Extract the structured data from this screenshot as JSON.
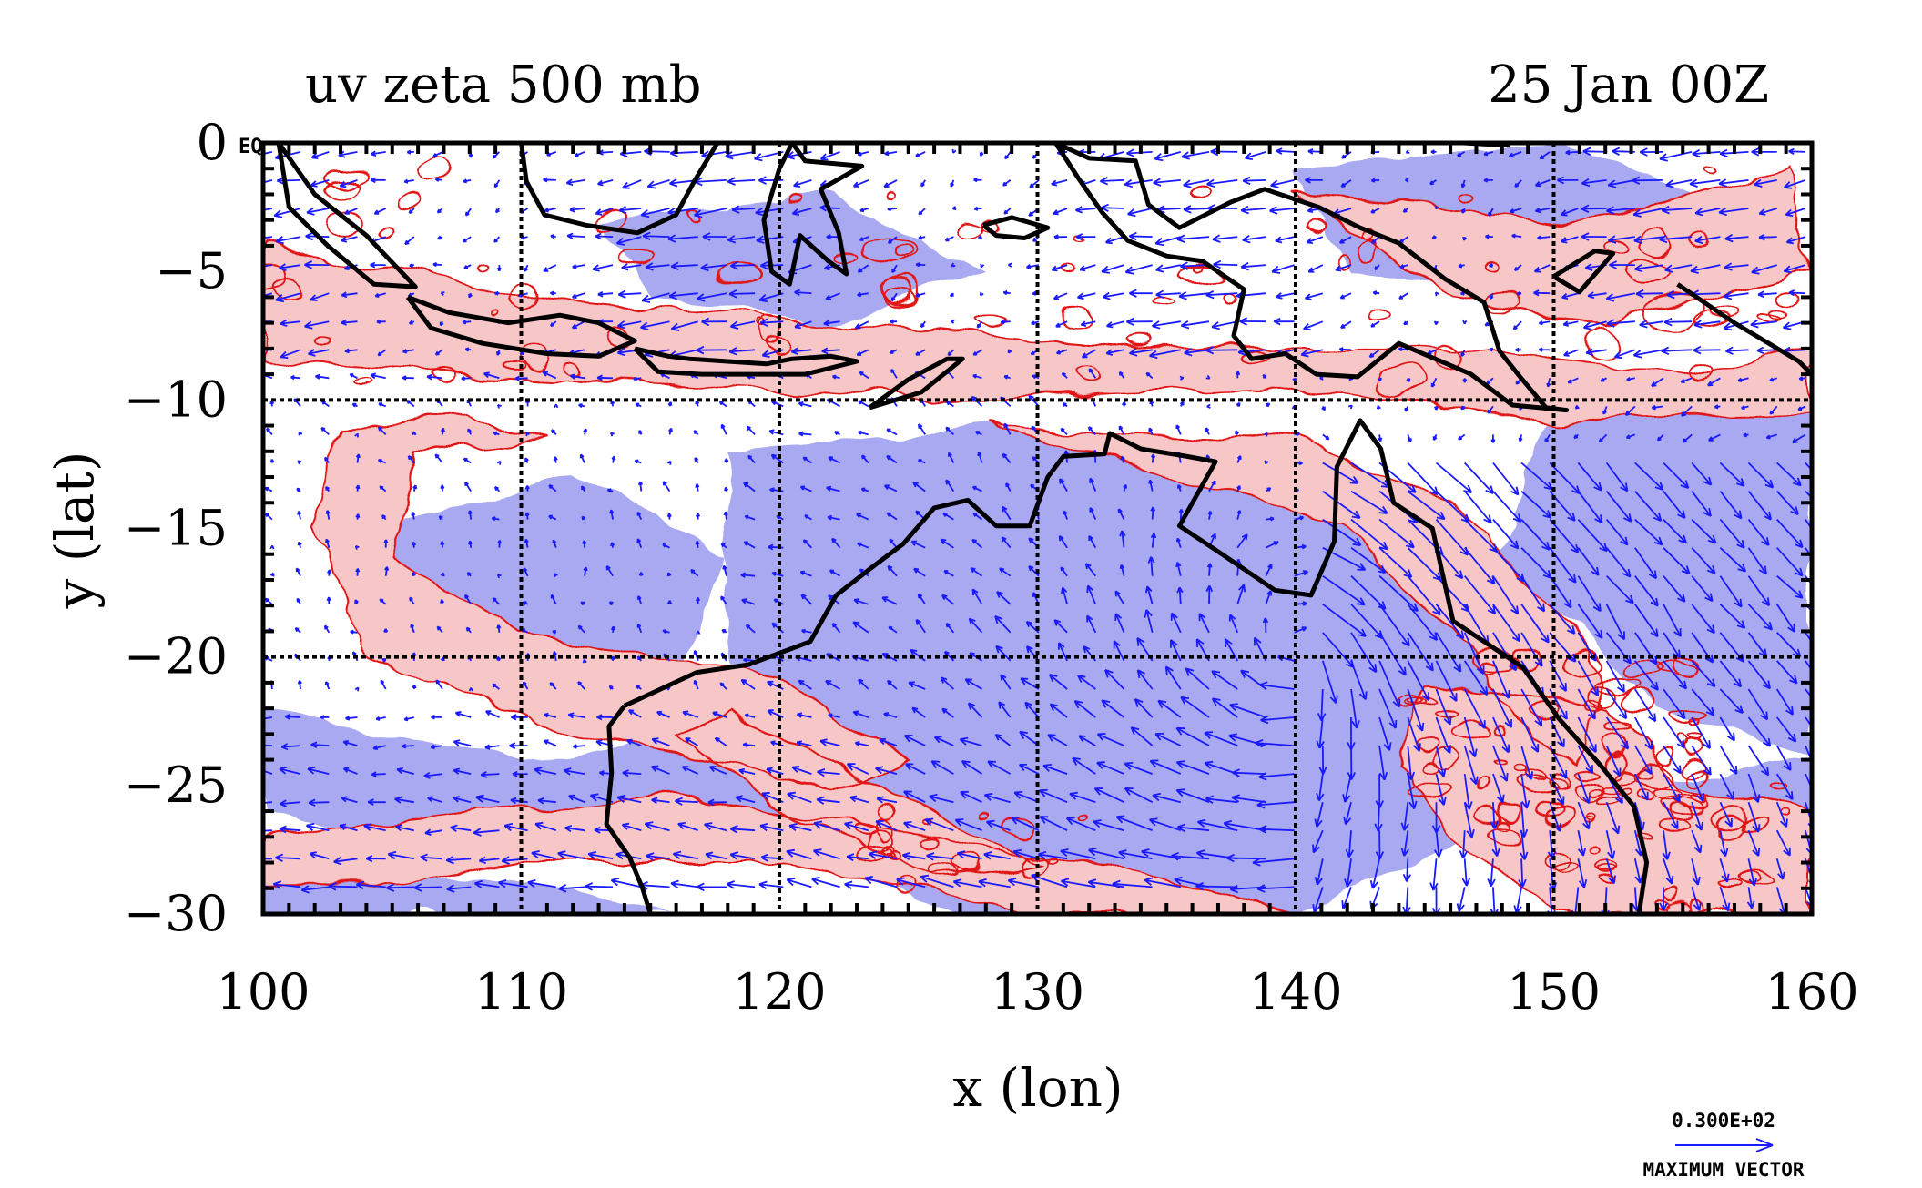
{
  "plot": {
    "title_left": "uv zeta 500 mb",
    "title_right": "25 Jan 00Z",
    "x_label": "x (lon)",
    "y_label": "y (lat)",
    "corner_label": "EQ",
    "x_ticks": [
      "100",
      "110",
      "120",
      "130",
      "140",
      "150",
      "160"
    ],
    "y_ticks": [
      "0",
      "−5",
      "−10",
      "−15",
      "−20",
      "−25",
      "−30"
    ],
    "vector_key": {
      "value": "0.300E+02",
      "caption": "MAXIMUM VECTOR"
    }
  },
  "chart_data": {
    "type": "vector-contour-map",
    "variable": "uv zeta",
    "level": "500 mb",
    "time": "25 Jan 00Z",
    "x": {
      "label": "x (lon)",
      "range": [
        100,
        160
      ],
      "ticks": [
        100,
        110,
        120,
        130,
        140,
        150,
        160
      ]
    },
    "y": {
      "label": "y (lat)",
      "range": [
        -30,
        0
      ],
      "ticks": [
        0,
        -5,
        -10,
        -15,
        -20,
        -25,
        -30
      ]
    },
    "grid_lines": {
      "lon": [
        110,
        120,
        130,
        140,
        150
      ],
      "lat": [
        -10,
        -20
      ]
    },
    "colors": {
      "vectors": "#1a1aff",
      "positive_fill": "#f7c6c6",
      "positive_contour": "#e01818",
      "negative_fill": "#a9a9f2",
      "coastline": "#000000"
    },
    "max_vector": "0.300E+02",
    "coastline_lonlat": [
      [
        [
          100.6,
          0.0
        ],
        [
          102.0,
          -2.0
        ],
        [
          104.0,
          -3.6
        ],
        [
          105.9,
          -5.6
        ],
        [
          104.3,
          -5.5
        ],
        [
          102.5,
          -4.0
        ],
        [
          101.0,
          -2.5
        ],
        [
          100.6,
          0.0
        ]
      ],
      [
        [
          105.6,
          -6.0
        ],
        [
          107.2,
          -6.6
        ],
        [
          109.5,
          -7.0
        ],
        [
          111.5,
          -6.7
        ],
        [
          113.0,
          -7.0
        ],
        [
          114.4,
          -7.7
        ],
        [
          113.0,
          -8.3
        ],
        [
          111.0,
          -8.2
        ],
        [
          108.5,
          -7.8
        ],
        [
          106.5,
          -7.2
        ],
        [
          105.6,
          -6.0
        ]
      ],
      [
        [
          114.4,
          -8.0
        ],
        [
          115.7,
          -8.3
        ],
        [
          116.5,
          -8.4
        ],
        [
          118.0,
          -8.5
        ],
        [
          119.5,
          -8.6
        ],
        [
          120.5,
          -8.4
        ],
        [
          122.0,
          -8.3
        ],
        [
          123.0,
          -8.5
        ],
        [
          121.0,
          -9.0
        ],
        [
          119.0,
          -9.0
        ],
        [
          117.0,
          -9.0
        ],
        [
          115.3,
          -8.9
        ],
        [
          114.4,
          -8.0
        ]
      ],
      [
        [
          123.5,
          -10.3
        ],
        [
          125.0,
          -9.2
        ],
        [
          126.5,
          -8.4
        ],
        [
          127.1,
          -8.4
        ],
        [
          125.5,
          -9.7
        ],
        [
          123.5,
          -10.3
        ]
      ],
      [
        [
          110.0,
          0.0
        ],
        [
          110.2,
          -1.5
        ],
        [
          110.9,
          -2.8
        ],
        [
          112.5,
          -3.2
        ],
        [
          114.5,
          -3.5
        ],
        [
          116.0,
          -2.8
        ],
        [
          116.7,
          -1.5
        ],
        [
          117.6,
          0.0
        ]
      ],
      [
        [
          120.5,
          0.0
        ],
        [
          120.0,
          -1.0
        ],
        [
          119.4,
          -3.0
        ],
        [
          119.7,
          -5.0
        ],
        [
          120.4,
          -5.5
        ],
        [
          120.8,
          -3.6
        ],
        [
          121.9,
          -4.6
        ],
        [
          122.6,
          -5.1
        ],
        [
          122.3,
          -3.5
        ],
        [
          121.6,
          -1.8
        ],
        [
          123.2,
          -0.9
        ],
        [
          121.0,
          -0.7
        ],
        [
          120.5,
          0.0
        ]
      ],
      [
        [
          127.9,
          -3.2
        ],
        [
          129.0,
          -2.9
        ],
        [
          130.4,
          -3.3
        ],
        [
          129.5,
          -3.7
        ],
        [
          128.4,
          -3.6
        ],
        [
          127.9,
          -3.2
        ]
      ],
      [
        [
          130.7,
          0.0
        ],
        [
          132.0,
          -0.6
        ],
        [
          133.8,
          -0.7
        ],
        [
          134.3,
          -2.4
        ],
        [
          135.5,
          -3.3
        ],
        [
          137.5,
          -2.3
        ],
        [
          138.8,
          -1.8
        ],
        [
          140.9,
          -2.5
        ],
        [
          142.5,
          -3.3
        ],
        [
          144.0,
          -3.9
        ],
        [
          145.8,
          -5.3
        ],
        [
          147.3,
          -6.2
        ],
        [
          147.9,
          -8.1
        ],
        [
          148.7,
          -9.1
        ],
        [
          149.7,
          -10.3
        ],
        [
          150.5,
          -10.4
        ],
        [
          148.4,
          -10.2
        ],
        [
          146.8,
          -9.0
        ],
        [
          144.0,
          -7.8
        ],
        [
          142.4,
          -9.1
        ],
        [
          140.8,
          -9.0
        ],
        [
          139.6,
          -8.2
        ],
        [
          138.3,
          -8.4
        ],
        [
          137.6,
          -7.5
        ],
        [
          138.0,
          -5.7
        ],
        [
          136.4,
          -4.6
        ],
        [
          135.0,
          -4.4
        ],
        [
          133.5,
          -3.8
        ],
        [
          132.5,
          -2.7
        ],
        [
          131.6,
          -1.4
        ],
        [
          130.7,
          0.0
        ]
      ],
      [
        [
          146.5,
          0.0
        ],
        [
          148.3,
          -0.1
        ]
      ],
      [
        [
          150.0,
          -5.2
        ],
        [
          151.6,
          -4.2
        ],
        [
          152.3,
          -4.3
        ],
        [
          151.0,
          -5.8
        ],
        [
          150.0,
          -5.2
        ]
      ],
      [
        [
          154.8,
          -5.5
        ],
        [
          157.0,
          -7.0
        ],
        [
          159.5,
          -8.5
        ],
        [
          160.0,
          -9.0
        ]
      ],
      [
        [
          114.0,
          -21.9
        ],
        [
          116.8,
          -20.6
        ],
        [
          118.8,
          -20.3
        ],
        [
          121.2,
          -19.4
        ],
        [
          122.2,
          -17.6
        ],
        [
          123.6,
          -16.5
        ],
        [
          124.8,
          -15.6
        ],
        [
          126.0,
          -14.2
        ],
        [
          127.3,
          -13.9
        ],
        [
          128.4,
          -14.9
        ],
        [
          129.7,
          -14.9
        ],
        [
          130.4,
          -13.0
        ],
        [
          131.0,
          -12.2
        ],
        [
          132.6,
          -12.1
        ],
        [
          132.8,
          -11.3
        ],
        [
          134.0,
          -11.9
        ],
        [
          135.8,
          -12.2
        ],
        [
          136.9,
          -12.4
        ],
        [
          135.5,
          -14.9
        ],
        [
          137.0,
          -15.9
        ],
        [
          139.2,
          -17.4
        ],
        [
          140.6,
          -17.6
        ],
        [
          141.5,
          -15.5
        ],
        [
          141.6,
          -12.6
        ],
        [
          142.5,
          -10.8
        ],
        [
          143.3,
          -11.9
        ],
        [
          143.8,
          -14.0
        ],
        [
          145.3,
          -15.0
        ],
        [
          146.1,
          -18.6
        ],
        [
          148.8,
          -20.4
        ],
        [
          150.2,
          -22.4
        ],
        [
          151.8,
          -24.2
        ],
        [
          153.1,
          -25.8
        ],
        [
          153.6,
          -28.0
        ],
        [
          153.3,
          -30.0
        ]
      ],
      [
        [
          114.0,
          -21.9
        ],
        [
          113.4,
          -22.7
        ],
        [
          113.5,
          -24.5
        ],
        [
          113.3,
          -26.5
        ],
        [
          114.2,
          -27.8
        ],
        [
          114.7,
          -29.0
        ],
        [
          115.0,
          -30.0
        ]
      ]
    ]
  }
}
